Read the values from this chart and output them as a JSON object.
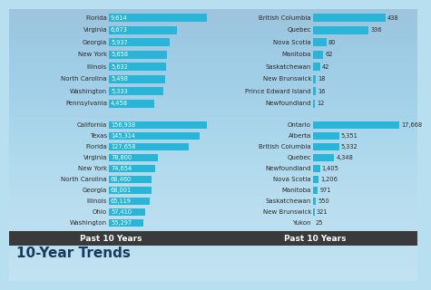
{
  "bg_color_top": "#b8dff0",
  "bg_color_bot": "#c8e8f5",
  "bar_color": "#29b5d8",
  "footer_color": "#3a3a3a",
  "label_color": "#2a2a2a",
  "value_color_white": "#ffffff",
  "value_color_dark": "#2a2a2a",
  "top_left_labels": [
    "Florida",
    "Virginia",
    "Georgia",
    "New York",
    "Illinois",
    "North Carolina",
    "Washington",
    "Pennsylvania"
  ],
  "top_left_values": [
    9614,
    6673,
    5937,
    5658,
    5632,
    5498,
    5333,
    4458
  ],
  "top_right_labels": [
    "British Columbia",
    "Quebec",
    "Nova Scotia",
    "Manitoba",
    "Saskatchewan",
    "New Brunswick",
    "Prince Edward Island",
    "Newfoundland"
  ],
  "top_right_values": [
    438,
    336,
    80,
    62,
    42,
    18,
    16,
    12
  ],
  "bot_left_labels": [
    "California",
    "Texas",
    "Florida",
    "Virginia",
    "New York",
    "North Carolina",
    "Georgia",
    "Illinois",
    "Ohio",
    "Washington"
  ],
  "bot_left_values": [
    156938,
    145314,
    127658,
    78800,
    74654,
    68460,
    68001,
    65119,
    57410,
    55297
  ],
  "bot_right_labels": [
    "Ontario",
    "Alberta",
    "British Columbia",
    "Quebec",
    "Newfoundland",
    "Nova Scotia",
    "Manitoba",
    "Saskatchewan",
    "New Brunswick",
    "Yukon"
  ],
  "bot_right_values": [
    17668,
    5351,
    5332,
    4348,
    1405,
    1206,
    971,
    550,
    321,
    25
  ],
  "footer_label": "Past 10 Years",
  "section_label": "10-Year Trends",
  "section_label_color": "#1a3a5c"
}
